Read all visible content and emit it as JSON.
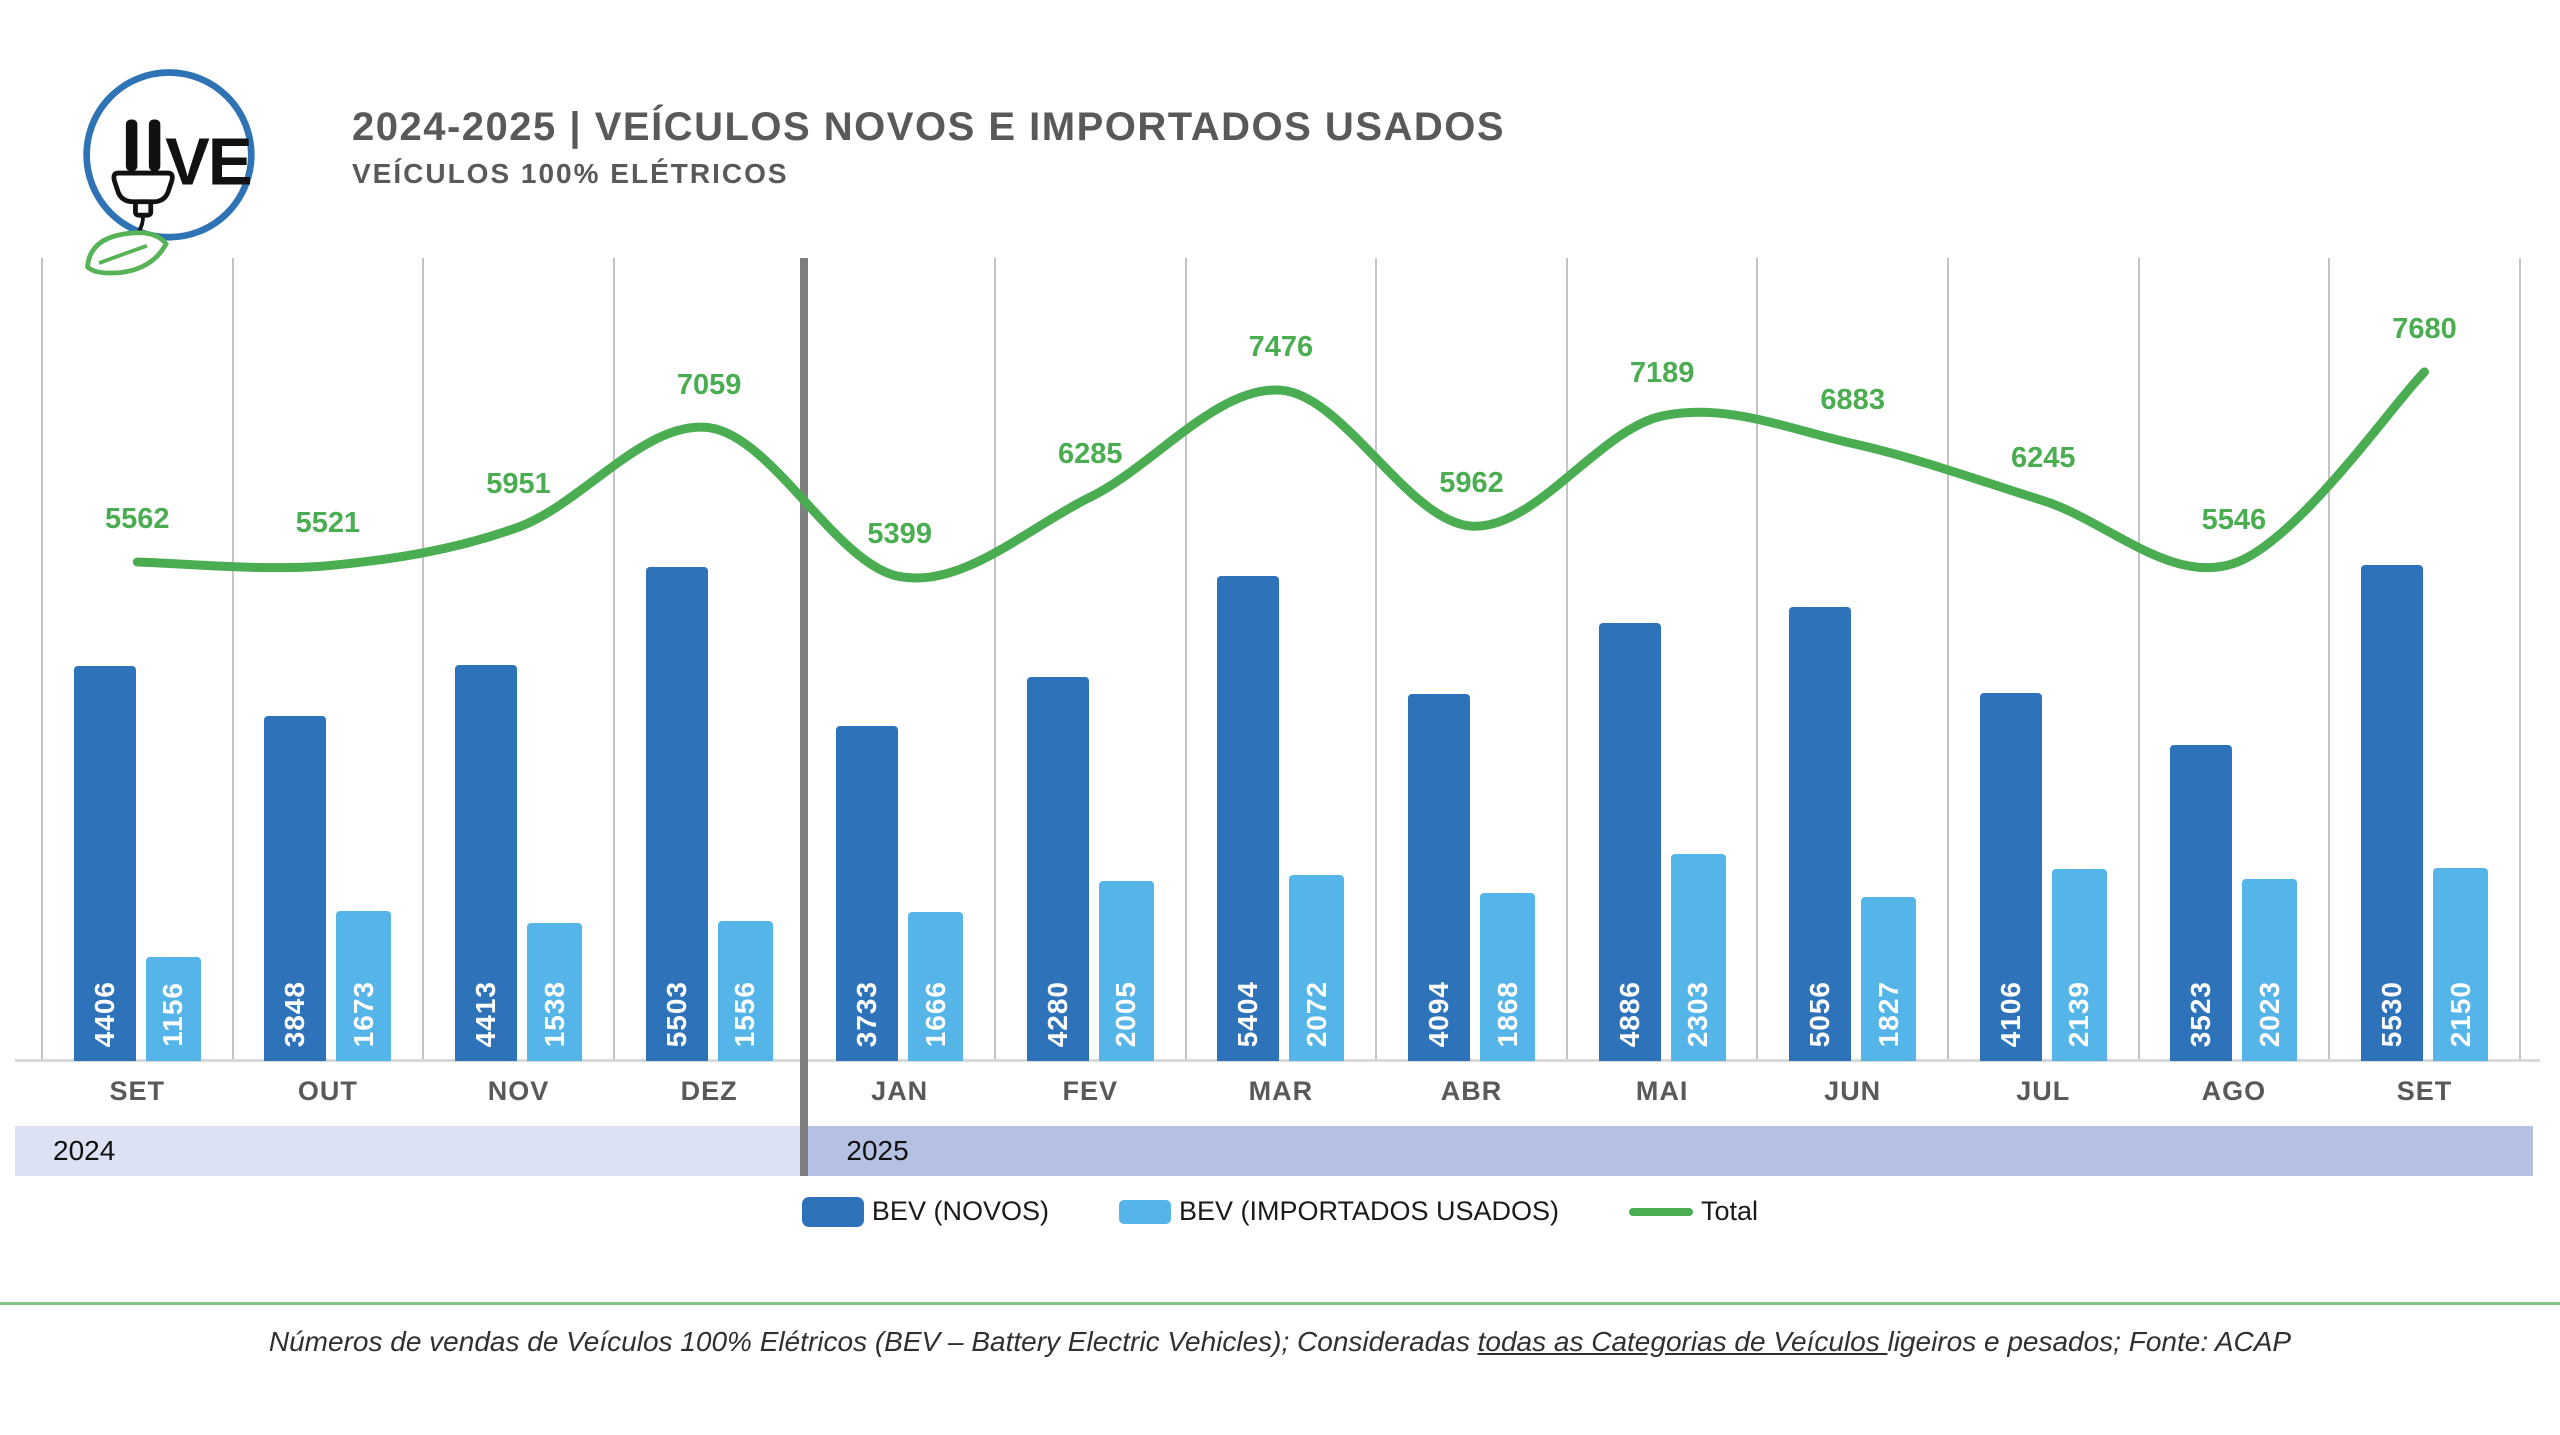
{
  "header": {
    "logo_text": "UVE",
    "title": "2024-2025 | VEÍCULOS NOVOS E IMPORTADOS USADOS",
    "subtitle": "VEÍCULOS 100% ELÉTRICOS"
  },
  "chart_data": {
    "type": "grouped-bar-with-line",
    "categories": [
      "SET",
      "OUT",
      "NOV",
      "DEZ",
      "JAN",
      "FEV",
      "MAR",
      "ABR",
      "MAI",
      "JUN",
      "JUL",
      "AGO",
      "SET"
    ],
    "year_groups": [
      {
        "label": "2024",
        "start": 0,
        "count": 4,
        "band_color": "#DCE2F3"
      },
      {
        "label": "2025",
        "start": 4,
        "count": 9,
        "band_color": "#B5C1E3"
      }
    ],
    "series": [
      {
        "name": "BEV (NOVOS)",
        "type": "bar",
        "color": "#2E73B9",
        "values": [
          4406,
          3848,
          4413,
          5503,
          3733,
          4280,
          5404,
          4094,
          4886,
          5056,
          4106,
          3523,
          5530
        ]
      },
      {
        "name": "BEV (IMPORTADOS USADOS)",
        "type": "bar",
        "color": "#56B5E8",
        "values": [
          1156,
          1673,
          1538,
          1556,
          1666,
          2005,
          2072,
          1868,
          2303,
          1827,
          2139,
          2023,
          2150
        ]
      },
      {
        "name": "Total",
        "type": "line",
        "color": "#4AAD51",
        "values": [
          5562,
          5521,
          5951,
          7059,
          5399,
          6285,
          7476,
          5962,
          7189,
          6883,
          6245,
          5546,
          7680
        ]
      }
    ],
    "ylim": [
      0,
      8950
    ],
    "grid": "vertical-only",
    "legend_position": "bottom",
    "bar_value_labels": "rotated-90-inside-bar-white",
    "line_value_labels": "above-line-green"
  },
  "footer": {
    "note_part1": "Números de vendas de Veículos 100% Elétricos (BEV – Battery Electric Vehicles); Consideradas ",
    "note_underlined": "todas as Categorias de Veículos ",
    "note_part2": "ligeiros e pesados; Fonte: ACAP"
  }
}
